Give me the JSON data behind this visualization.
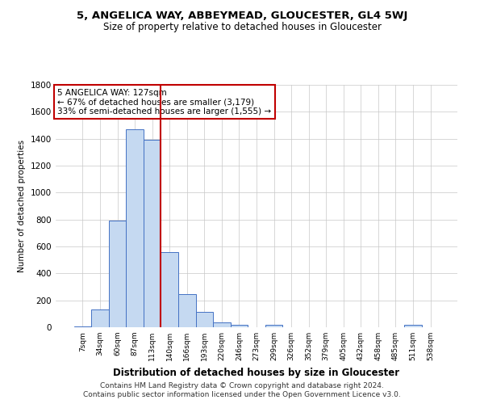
{
  "title1": "5, ANGELICA WAY, ABBEYMEAD, GLOUCESTER, GL4 5WJ",
  "title2": "Size of property relative to detached houses in Gloucester",
  "xlabel": "Distribution of detached houses by size in Gloucester",
  "ylabel": "Number of detached properties",
  "bin_labels": [
    "7sqm",
    "34sqm",
    "60sqm",
    "87sqm",
    "113sqm",
    "140sqm",
    "166sqm",
    "193sqm",
    "220sqm",
    "246sqm",
    "273sqm",
    "299sqm",
    "326sqm",
    "352sqm",
    "379sqm",
    "405sqm",
    "432sqm",
    "458sqm",
    "485sqm",
    "511sqm",
    "538sqm"
  ],
  "bar_heights": [
    5,
    130,
    790,
    1470,
    1390,
    560,
    245,
    115,
    35,
    20,
    0,
    20,
    0,
    0,
    0,
    0,
    0,
    0,
    0,
    20,
    0
  ],
  "bar_color": "#c5d9f1",
  "bar_edge_color": "#4472c4",
  "property_line_x": 4.5,
  "annotation_text": "5 ANGELICA WAY: 127sqm\n← 67% of detached houses are smaller (3,179)\n33% of semi-detached houses are larger (1,555) →",
  "annotation_box_color": "#c00000",
  "ylim": [
    0,
    1800
  ],
  "yticks": [
    0,
    200,
    400,
    600,
    800,
    1000,
    1200,
    1400,
    1600,
    1800
  ],
  "footer1": "Contains HM Land Registry data © Crown copyright and database right 2024.",
  "footer2": "Contains public sector information licensed under the Open Government Licence v3.0.",
  "bg_color": "#ffffff",
  "grid_color": "#c8c8c8"
}
